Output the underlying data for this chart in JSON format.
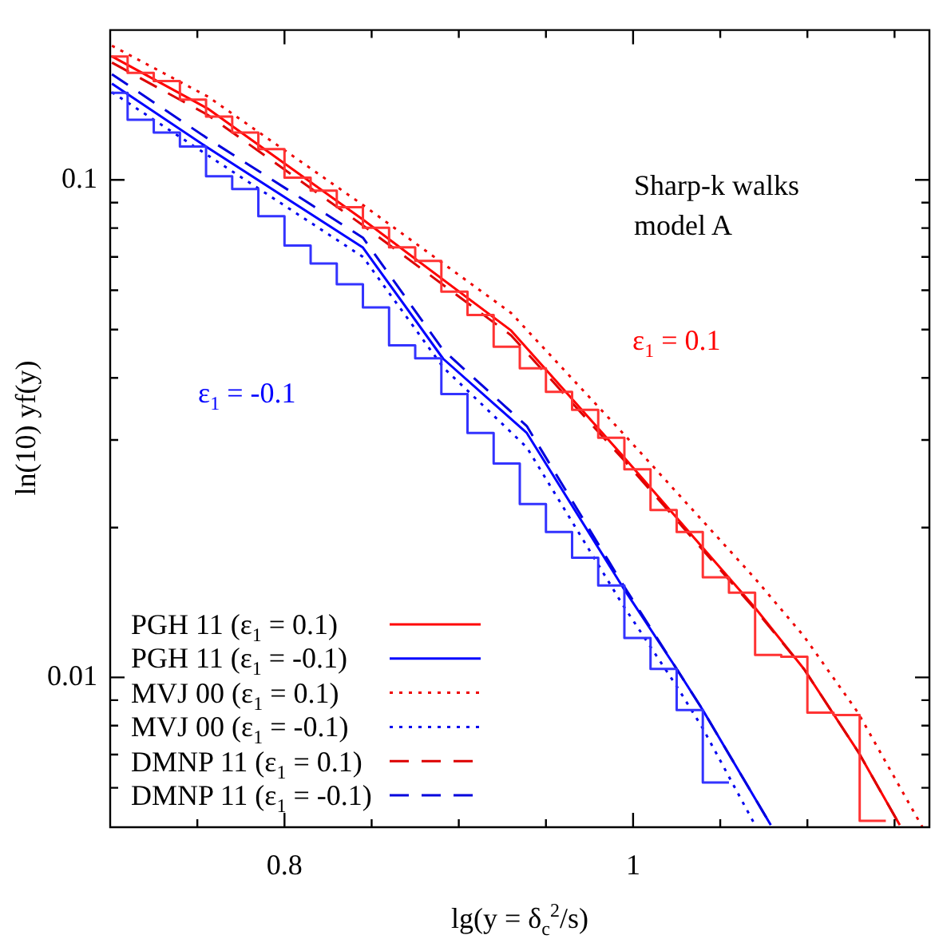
{
  "chart_data": {
    "type": "line",
    "xlabel": "lg(y = δ$_{c}$$^{2}$/s)",
    "ylabel": "ln(10) yf(y)",
    "annotations": [
      "Sharp-k walks",
      "model A",
      "ε$_{1}$ = 0.1",
      "ε$_{1}$ = -0.1"
    ],
    "xlim": [
      0.7,
      1.17
    ],
    "xticks": [
      {
        "value": 0.75,
        "label": null
      },
      0.8,
      {
        "value": 0.85,
        "label": null
      },
      {
        "value": 0.9,
        "label": null
      },
      {
        "value": 0.95,
        "label": null
      },
      1,
      {
        "value": 1.05,
        "label": null
      },
      {
        "value": 1.1,
        "label": null
      },
      {
        "value": 1.15,
        "label": null
      }
    ],
    "ylim": [
      0.005,
      0.2
    ],
    "log": true,
    "yticks": [
      {
        "value": 0.006,
        "label": null
      },
      {
        "value": 0.007,
        "label": null
      },
      {
        "value": 0.008,
        "label": null
      },
      {
        "value": 0.009,
        "label": null
      },
      0.01,
      {
        "value": 0.02,
        "label": null
      },
      {
        "value": 0.03,
        "label": null
      },
      {
        "value": 0.04,
        "label": null
      },
      {
        "value": 0.05,
        "label": null
      },
      {
        "value": 0.06,
        "label": null
      },
      {
        "value": 0.07,
        "label": null
      },
      {
        "value": 0.08,
        "label": null
      },
      {
        "value": 0.09,
        "label": null
      },
      0.1
    ],
    "grid": false,
    "legend": "bottom left",
    "marker": "none",
    "series": [
      {
        "name": "PGH 11 (ε$_{1}$ = 0.1)",
        "color": "#ff0000",
        "line_style": "solid",
        "x": [
          0.701,
          0.756,
          0.845,
          0.93,
          0.994,
          1.07,
          1.098,
          1.129,
          1.153
        ],
        "values": [
          0.177,
          0.139,
          0.0832,
          0.0498,
          0.0279,
          0.0138,
          0.0104,
          0.0071,
          0.00505
        ]
      },
      {
        "name": "PGH 11 (ε$_{1}$ = -0.1)",
        "color": "#0000ff",
        "line_style": "solid",
        "x": [
          0.701,
          0.756,
          0.845,
          0.891,
          0.939,
          0.994,
          1.025,
          1.04,
          1.079
        ],
        "values": [
          0.156,
          0.116,
          0.0731,
          0.0437,
          0.031,
          0.0152,
          0.0104,
          0.0086,
          0.00505
        ]
      },
      {
        "name": "MVJ 00 (ε$_{1}$ = 0.1)",
        "color": "#ee0000",
        "line_style": "dotted",
        "x": [
          0.701,
          0.756,
          0.845,
          0.93,
          0.994,
          1.07,
          1.098,
          1.129,
          1.166
        ],
        "values": [
          0.186,
          0.147,
          0.089,
          0.054,
          0.031,
          0.0158,
          0.0121,
          0.0085,
          0.005
        ]
      },
      {
        "name": "MVJ 00 (ε$_{1}$ = -0.1)",
        "color": "#0000ee",
        "line_style": "dotted",
        "x": [
          0.701,
          0.756,
          0.845,
          0.891,
          0.939,
          0.994,
          1.025,
          1.04,
          1.07
        ],
        "values": [
          0.15,
          0.112,
          0.07,
          0.042,
          0.029,
          0.014,
          0.0096,
          0.0079,
          0.00505
        ]
      },
      {
        "name": "DMNP 11 (ε$_{1}$ = 0.1)",
        "color": "#dd0000",
        "line_style": "dashed",
        "x": [
          0.701,
          0.756,
          0.845,
          0.93,
          0.994,
          1.07,
          1.098,
          1.129,
          1.153
        ],
        "values": [
          0.172,
          0.135,
          0.081,
          0.0487,
          0.0275,
          0.0137,
          0.0104,
          0.0071,
          0.00505
        ]
      },
      {
        "name": "DMNP 11 (ε$_{1}$ = -0.1)",
        "color": "#0000dd",
        "line_style": "dashed",
        "x": [
          0.701,
          0.756,
          0.845,
          0.891,
          0.939,
          0.994,
          1.025,
          1.04,
          1.079
        ],
        "values": [
          0.163,
          0.121,
          0.0765,
          0.0455,
          0.032,
          0.0154,
          0.0104,
          0.0086,
          0.00505
        ]
      },
      {
        "type": "histogram",
        "color": "#ff3333",
        "bins": [
          0.7,
          0.71,
          0.725,
          0.74,
          0.755,
          0.77,
          0.785,
          0.8,
          0.815,
          0.83,
          0.845,
          0.86,
          0.875,
          0.89,
          0.905,
          0.92,
          0.935,
          0.95,
          0.965,
          0.98,
          0.995,
          1.01,
          1.025,
          1.04,
          1.055,
          1.07,
          1.085,
          1.1,
          1.115,
          1.13,
          1.145
        ],
        "values": [
          0.177,
          0.164,
          0.158,
          0.145,
          0.134,
          0.1245,
          0.1153,
          0.101,
          0.0951,
          0.0881,
          0.0801,
          0.0732,
          0.0687,
          0.0596,
          0.0535,
          0.0462,
          0.0418,
          0.0375,
          0.0345,
          0.0303,
          0.0262,
          0.0217,
          0.0196,
          0.0159,
          0.0148,
          0.0111,
          0.011,
          0.0085,
          0.0084,
          0.00515
        ]
      },
      {
        "type": "histogram",
        "color": "#3333ff",
        "bins": [
          0.7,
          0.71,
          0.725,
          0.74,
          0.755,
          0.77,
          0.785,
          0.8,
          0.815,
          0.83,
          0.845,
          0.86,
          0.875,
          0.89,
          0.905,
          0.92,
          0.935,
          0.95,
          0.965,
          0.98,
          0.995,
          1.01,
          1.025,
          1.04,
          1.055
        ],
        "values": [
          0.1496,
          0.132,
          0.1245,
          0.1167,
          0.1017,
          0.0958,
          0.0845,
          0.0738,
          0.0679,
          0.0617,
          0.0554,
          0.0465,
          0.0438,
          0.0371,
          0.031,
          0.0269,
          0.0223,
          0.0196,
          0.0174,
          0.0153,
          0.012,
          0.0104,
          0.0086,
          0.00615
        ]
      }
    ]
  }
}
